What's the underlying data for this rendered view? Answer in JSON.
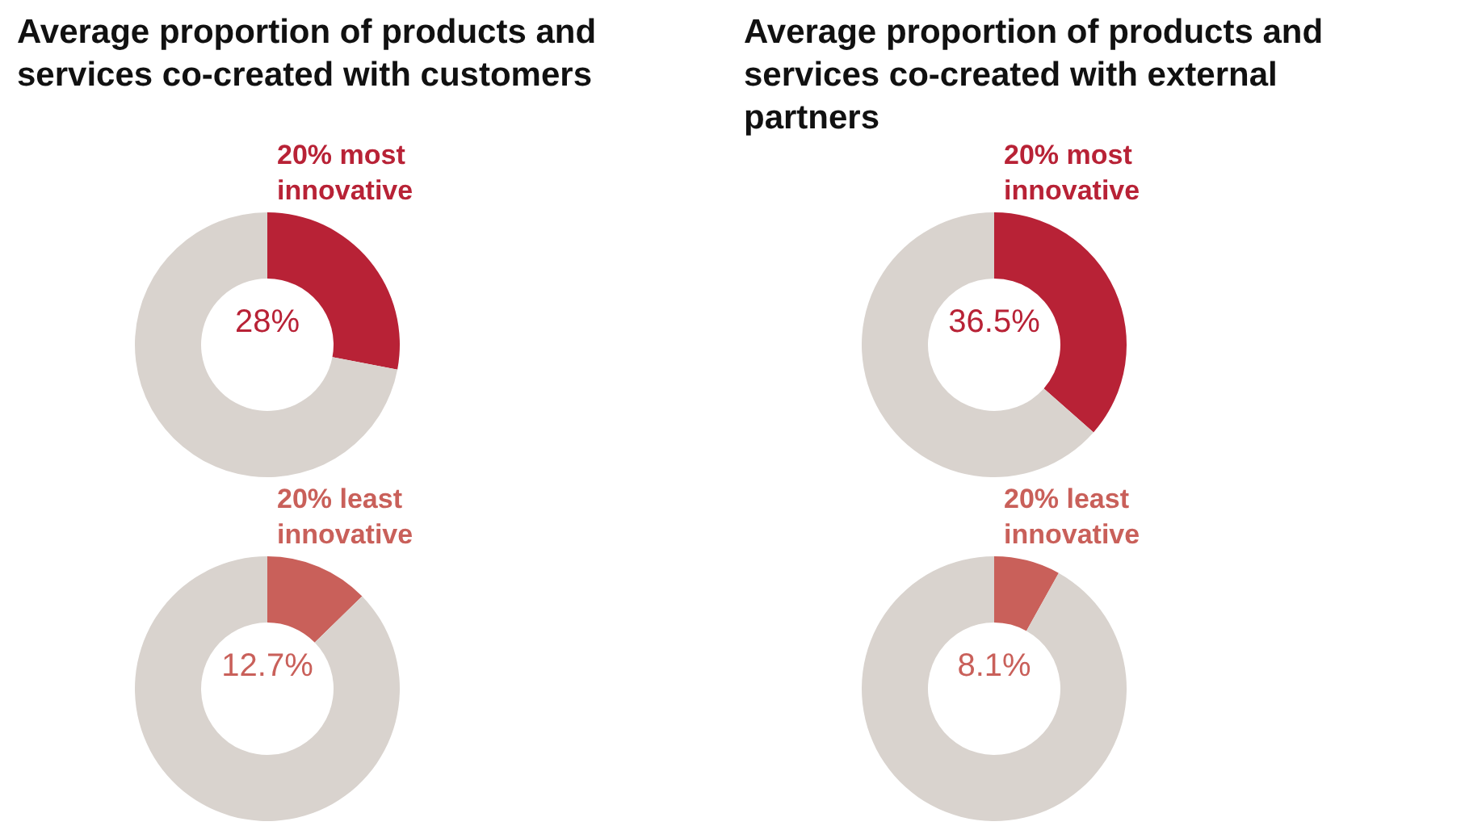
{
  "chart_data": [
    {
      "type": "donut",
      "title": "Average proportion of products and services co-created with customers",
      "categories": [
        "20% most innovative",
        null
      ],
      "values": [
        28,
        72
      ],
      "colors": [
        "#b82236",
        "#d9d3ce"
      ],
      "value_labels": [
        "28%",
        null
      ]
    },
    {
      "type": "donut",
      "title": "Average proportion of products and services co-created with external partners",
      "categories": [
        "20% most innovative",
        null
      ],
      "values": [
        36.5,
        63.5
      ],
      "colors": [
        "#b82236",
        "#d9d3ce"
      ],
      "value_labels": [
        "36.5%",
        null
      ]
    },
    {
      "type": "donut",
      "categories": [
        "20% least innovative",
        null
      ],
      "values": [
        12.7,
        87.3
      ],
      "colors": [
        "#c9605a",
        "#d9d3ce"
      ],
      "value_labels": [
        "12.7%",
        null
      ]
    },
    {
      "type": "donut",
      "categories": [
        "20% least innovative",
        null
      ],
      "values": [
        8.1,
        91.9
      ],
      "colors": [
        "#c9605a",
        "#d9d3ce"
      ],
      "value_labels": [
        "8.1%",
        null
      ]
    }
  ]
}
